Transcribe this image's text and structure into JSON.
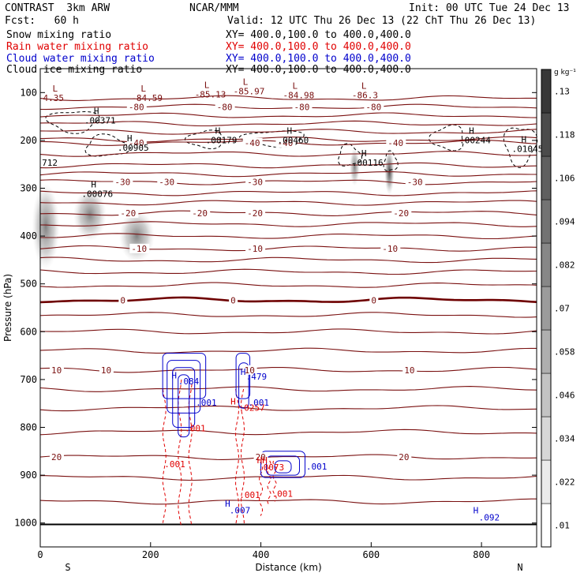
{
  "header": {
    "left_line1": "CONTRAST  3km ARW",
    "left_line2": "Fcst:   60 h",
    "center_line1": "NCAR/MMM",
    "right_line1": "Init: 00 UTC Tue 24 Dec 13",
    "right_line2": "Valid: 12 UTC Thu 26 Dec 13 (22 ChT Thu 26 Dec 13)",
    "fields": [
      {
        "name": "Snow mixing ratio",
        "color": "#000000",
        "xy": ""
      },
      {
        "name": "Rain water mixing ratio",
        "color": "#e00000",
        "xy": "XY= 400.0,100.0 to 400.0,400.0"
      },
      {
        "name": "Cloud water mixing ratio",
        "color": "#0000cc",
        "xy": "XY= 400.0,100.0 to 400.0,400.0"
      },
      {
        "name": "Cloud ice mixing ratio",
        "color": "#000000",
        "xy": "XY= 400.0,100.0 to 400.0,400.0"
      }
    ],
    "snow_xy": "XY= 400.0,100.0 to 400.0,400.0"
  },
  "colors": {
    "temperature": "#7a1010",
    "freezing": "#6e0000",
    "rain": "#e00000",
    "cloud_water": "#0000cc",
    "cloud_ice": "#000000"
  },
  "chart_data": {
    "type": "contour",
    "xlabel": "Distance (km)",
    "ylabel": "Pressure (hPa)",
    "xlim": [
      0,
      900
    ],
    "ylim": [
      1050,
      50
    ],
    "x_ticks": [
      0,
      200,
      400,
      600,
      800
    ],
    "y_ticks": [
      100,
      200,
      300,
      400,
      500,
      600,
      700,
      800,
      900,
      1000
    ],
    "x_end_labels": {
      "left": "S",
      "right": "N"
    },
    "colorbar": {
      "unit": "g kg⁻¹",
      "ticks": [
        ".01",
        ".022",
        ".034",
        ".046",
        ".058",
        ".07",
        ".082",
        ".094",
        ".106",
        ".118",
        ".13"
      ]
    },
    "temperature_contours": [
      {
        "value": -80,
        "pressure": 130,
        "labels": [
          "-80",
          "-80",
          "-80",
          "-80"
        ],
        "label_x": [
          160,
          320,
          460,
          590
        ]
      },
      {
        "value": -40,
        "pressure": 205,
        "labels": [
          "-40",
          "-40",
          "-40",
          "-40"
        ],
        "label_x": [
          160,
          370,
          430,
          630
        ]
      },
      {
        "value": -30,
        "pressure": 287,
        "labels": [
          "-30",
          "-30",
          "-30",
          "-30"
        ],
        "label_x": [
          135,
          215,
          375,
          665
        ]
      },
      {
        "value": -20,
        "pressure": 352,
        "labels": [
          "-20",
          "-20",
          "-20",
          "-20"
        ],
        "label_x": [
          145,
          275,
          375,
          640
        ]
      },
      {
        "value": -10,
        "pressure": 426,
        "labels": [
          "-10",
          "-10",
          "-10"
        ],
        "label_x": [
          165,
          375,
          620
        ]
      },
      {
        "value": 0,
        "pressure": 534,
        "labels": [
          "0",
          "0",
          "0"
        ],
        "label_x": [
          145,
          345,
          600
        ]
      },
      {
        "value": 10,
        "pressure": 680,
        "labels": [
          "10",
          "10",
          "10",
          "10"
        ],
        "label_x": [
          20,
          110,
          370,
          660
        ]
      },
      {
        "value": 20,
        "pressure": 862,
        "labels": [
          "20",
          "20",
          "20"
        ],
        "label_x": [
          20,
          390,
          650
        ]
      }
    ],
    "minima_labels": [
      {
        "text": "4.35",
        "x": 5,
        "p": 118
      },
      {
        "text": "-84.59",
        "x": 165,
        "p": 118
      },
      {
        "text": "-85.13",
        "x": 280,
        "p": 110
      },
      {
        "text": "-85.97",
        "x": 350,
        "p": 104
      },
      {
        "text": "-84.98",
        "x": 440,
        "p": 112
      },
      {
        "text": "-86.3",
        "x": 565,
        "p": 112
      }
    ],
    "ice_maxima": [
      {
        "text": ".00371",
        "x": 80,
        "p": 165
      },
      {
        "text": ".00905",
        "x": 140,
        "p": 222
      },
      {
        "text": ".00179",
        "x": 300,
        "p": 206
      },
      {
        "text": ".00460",
        "x": 430,
        "p": 206
      },
      {
        "text": ".00116",
        "x": 565,
        "p": 253
      },
      {
        "text": ".00244",
        "x": 760,
        "p": 206
      },
      {
        "text": ".01045",
        "x": 855,
        "p": 224
      },
      {
        "text": ".00076",
        "x": 75,
        "p": 318
      },
      {
        "text": "712",
        "x": 3,
        "p": 253
      }
    ],
    "cloud_water_labels": [
      {
        "text": ".084",
        "x": 250,
        "p": 710
      },
      {
        "text": ".001",
        "x": 282,
        "p": 755
      },
      {
        "text": ".479",
        "x": 373,
        "p": 700
      },
      {
        "text": ".001",
        "x": 377,
        "p": 755
      },
      {
        "text": ".001",
        "x": 482,
        "p": 888
      },
      {
        "text": ".007",
        "x": 343,
        "p": 980
      },
      {
        "text": ".092",
        "x": 795,
        "p": 995
      }
    ],
    "rain_labels": [
      {
        "text": ".0257",
        "x": 360,
        "p": 765
      },
      {
        "text": ".001",
        "x": 262,
        "p": 808
      },
      {
        "text": ".001",
        "x": 225,
        "p": 883
      },
      {
        "text": ".0073",
        "x": 395,
        "p": 890
      },
      {
        "text": ".001",
        "x": 361,
        "p": 948
      },
      {
        "text": ".001",
        "x": 420,
        "p": 945
      }
    ]
  }
}
